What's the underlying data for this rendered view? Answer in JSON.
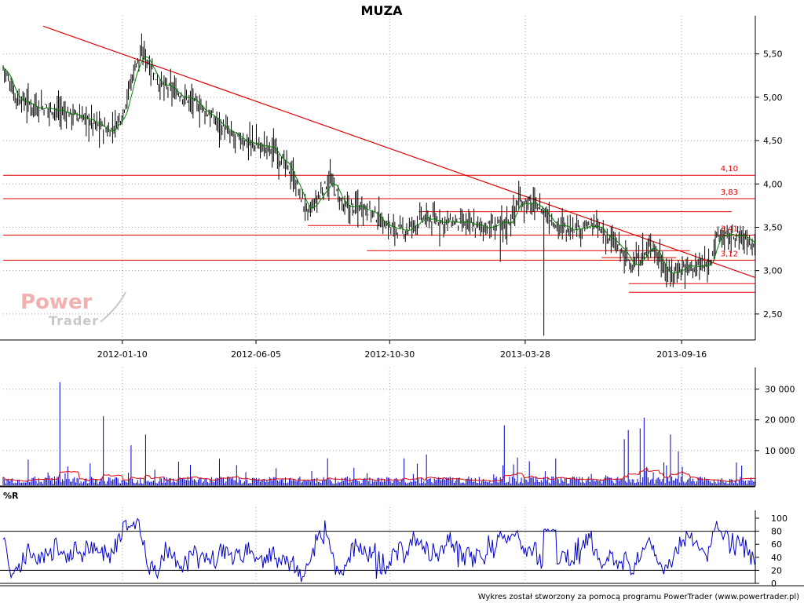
{
  "footer": "Wykres został stworzony za pomocą programu PowerTrader (www.powertrader.pl)",
  "watermark": {
    "line1": "Power",
    "line2": "Trader"
  },
  "colors": {
    "price": "#000000",
    "moving_average": "#008000",
    "levels": "#e00000",
    "trendline": "#e00000",
    "volume": "#0000cc",
    "volume_average": "#e00000",
    "williams_r": "#0000cc",
    "grid": "#a0a0a0"
  },
  "chart_data": [
    {
      "type": "candlestick",
      "title": "MUZA",
      "x_ticks": [
        "2012-01-10",
        "2012-06-05",
        "2012-10-30",
        "2013-03-28",
        "2013-09-16"
      ],
      "x_range": [
        "2011-09-01",
        "2013-12-06"
      ],
      "y_ticks": [
        2.5,
        3.0,
        3.5,
        4.0,
        4.5,
        5.0,
        5.5
      ],
      "y_tick_labels": [
        "2,50",
        "3,00",
        "3,50",
        "4,00",
        "4,50",
        "5,00",
        "5,50"
      ],
      "ylim": [
        2.2,
        5.85
      ],
      "grid": true,
      "axis_side": "right",
      "level_labels": [
        {
          "text": "4,10",
          "value": 4.1
        },
        {
          "text": "3,83",
          "value": 3.83
        },
        {
          "text": "3,41",
          "value": 3.41
        },
        {
          "text": "3,12",
          "value": 3.12
        }
      ],
      "series_keypoints": [
        {
          "x": "2011-09-01",
          "y": 5.35
        },
        {
          "x": "2011-09-15",
          "y": 5.0
        },
        {
          "x": "2011-10-05",
          "y": 4.9
        },
        {
          "x": "2011-11-01",
          "y": 4.85
        },
        {
          "x": "2011-12-01",
          "y": 4.75
        },
        {
          "x": "2011-12-27",
          "y": 4.6
        },
        {
          "x": "2012-01-10",
          "y": 4.8
        },
        {
          "x": "2012-01-25",
          "y": 5.4
        },
        {
          "x": "2012-02-03",
          "y": 5.5
        },
        {
          "x": "2012-02-20",
          "y": 5.15
        },
        {
          "x": "2012-03-20",
          "y": 5.0
        },
        {
          "x": "2012-04-15",
          "y": 4.8
        },
        {
          "x": "2012-05-10",
          "y": 4.55
        },
        {
          "x": "2012-06-05",
          "y": 4.45
        },
        {
          "x": "2012-06-25",
          "y": 4.4
        },
        {
          "x": "2012-07-15",
          "y": 4.1
        },
        {
          "x": "2012-08-01",
          "y": 3.65
        },
        {
          "x": "2012-08-25",
          "y": 4.05
        },
        {
          "x": "2012-09-10",
          "y": 3.72
        },
        {
          "x": "2012-10-01",
          "y": 3.75
        },
        {
          "x": "2012-10-30",
          "y": 3.5
        },
        {
          "x": "2012-11-15",
          "y": 3.45
        },
        {
          "x": "2012-12-05",
          "y": 3.6
        },
        {
          "x": "2013-01-10",
          "y": 3.55
        },
        {
          "x": "2013-02-15",
          "y": 3.5
        },
        {
          "x": "2013-03-10",
          "y": 3.55
        },
        {
          "x": "2013-03-20",
          "y": 3.8
        },
        {
          "x": "2013-04-10",
          "y": 3.75
        },
        {
          "x": "2013-05-05",
          "y": 3.5
        },
        {
          "x": "2013-06-15",
          "y": 3.5
        },
        {
          "x": "2013-07-10",
          "y": 3.25
        },
        {
          "x": "2013-07-25",
          "y": 3.05
        },
        {
          "x": "2013-08-15",
          "y": 3.3
        },
        {
          "x": "2013-09-01",
          "y": 2.95
        },
        {
          "x": "2013-09-20",
          "y": 3.05
        },
        {
          "x": "2013-10-15",
          "y": 3.05
        },
        {
          "x": "2013-10-25",
          "y": 3.4
        },
        {
          "x": "2013-11-20",
          "y": 3.4
        },
        {
          "x": "2013-12-06",
          "y": 3.3
        }
      ],
      "notable_wicks": [
        {
          "x": "2013-04-18",
          "low": 2.25
        },
        {
          "x": "2012-02-03",
          "high": 5.65
        },
        {
          "x": "2013-03-01",
          "low": 3.1
        }
      ],
      "trendlines": [
        {
          "from": {
            "x": "2011-10-15",
            "y": 5.82
          },
          "to": {
            "x": "2013-12-06",
            "y": 2.92
          }
        }
      ],
      "horizontal_levels": [
        {
          "value": 4.1,
          "from": "2011-09-01",
          "to": "2013-12-06"
        },
        {
          "value": 3.83,
          "from": "2011-09-01",
          "to": "2013-12-06"
        },
        {
          "value": 3.41,
          "from": "2011-09-01",
          "to": "2013-12-06"
        },
        {
          "value": 3.12,
          "from": "2011-09-01",
          "to": "2013-12-06"
        },
        {
          "value": 3.52,
          "from": "2012-08-01",
          "to": "2012-10-20"
        },
        {
          "value": 3.68,
          "from": "2012-12-01",
          "to": "2013-11-10"
        },
        {
          "value": 3.23,
          "from": "2012-10-05",
          "to": "2013-09-25"
        },
        {
          "value": 3.15,
          "from": "2013-06-20",
          "to": "2013-09-10"
        },
        {
          "value": 2.85,
          "from": "2013-07-20",
          "to": "2013-12-06"
        },
        {
          "value": 2.75,
          "from": "2013-07-20",
          "to": "2013-12-06"
        }
      ]
    },
    {
      "type": "bar",
      "title": "",
      "y_ticks": [
        10000,
        20000,
        30000
      ],
      "y_tick_labels": [
        "10 000",
        "20 000",
        "30 000"
      ],
      "ylim": [
        0,
        34500
      ],
      "grid": true,
      "spikes": [
        {
          "x": "2011-11-03",
          "value": 33500
        },
        {
          "x": "2011-12-20",
          "value": 22500
        },
        {
          "x": "2013-03-05",
          "value": 19500
        },
        {
          "x": "2013-07-15",
          "value": 15000
        },
        {
          "x": "2013-07-20",
          "value": 18000
        },
        {
          "x": "2013-08-05",
          "value": 22000
        },
        {
          "x": "2013-08-01",
          "value": 18500
        },
        {
          "x": "2013-09-03",
          "value": 16500
        },
        {
          "x": "2013-09-12",
          "value": 11000
        },
        {
          "x": "2012-01-20",
          "value": 13000
        },
        {
          "x": "2012-02-05",
          "value": 16500
        },
        {
          "x": "2012-12-10",
          "value": 10000
        },
        {
          "x": "2013-03-20",
          "value": 9000
        }
      ],
      "baseline_volume": 1500,
      "average_line": "moving average of volume (red)"
    },
    {
      "type": "line",
      "title": "%R",
      "y_ticks": [
        0,
        20,
        40,
        60,
        80,
        100
      ],
      "y_tick_labels": [
        "0",
        "20",
        "40",
        "60",
        "80",
        "100"
      ],
      "ylim": [
        0,
        100
      ],
      "reference_lines": [
        20,
        80
      ],
      "grid": true
    }
  ]
}
